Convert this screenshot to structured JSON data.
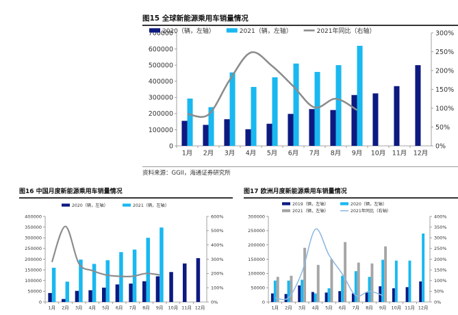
{
  "charts": [
    {
      "title": "图15 全球新能源乘用车销量情况",
      "source": "资料来源：GGII，海通证券研究所",
      "chart_data": {
        "type": "bar",
        "categories": [
          "1月",
          "2月",
          "3月",
          "4月",
          "5月",
          "6月",
          "7月",
          "8月",
          "9月",
          "10月",
          "11月",
          "12月"
        ],
        "series": [
          {
            "name": "2020（辆，左轴）",
            "kind": "bar",
            "axis": "left",
            "color": "#0d1a80",
            "values": [
              155000,
              130000,
              165000,
              103000,
              137000,
              198000,
              228000,
              222000,
              315000,
              325000,
              370000,
              500000
            ]
          },
          {
            "name": "2021（辆，左轴）",
            "kind": "bar",
            "axis": "left",
            "color": "#1ab8f0",
            "values": [
              293000,
              240000,
              455000,
              365000,
              425000,
              510000,
              458000,
              500000,
              620000,
              null,
              null,
              null
            ]
          },
          {
            "name": "2021年同比（右轴）",
            "kind": "line",
            "axis": "right",
            "color": "#8c8c8c",
            "values": [
              0.85,
              0.83,
              1.75,
              2.48,
              2.12,
              1.58,
              1.02,
              1.25,
              0.95,
              null,
              null,
              null
            ]
          }
        ],
        "ylim_left": [
          0,
          700000
        ],
        "yticks_left": [
          "0",
          "100000",
          "200000",
          "300000",
          "400000",
          "500000",
          "600000",
          "700000"
        ],
        "ylim_right": [
          0,
          3
        ],
        "yticks_right": [
          "0%",
          "50%",
          "100%",
          "150%",
          "200%",
          "250%",
          "300%"
        ],
        "legend_position": "top"
      }
    },
    {
      "title": "图16 中国月度新能源乘用车销量情况",
      "chart_data": {
        "type": "bar",
        "categories": [
          "1月",
          "2月",
          "3月",
          "4月",
          "5月",
          "6月",
          "7月",
          "8月",
          "9月",
          "10月",
          "11月",
          "12月"
        ],
        "series": [
          {
            "name": "2020（辆，左轴）",
            "kind": "bar",
            "axis": "left",
            "color": "#0d1a80",
            "values": [
              42000,
              14000,
              52000,
              55000,
              67000,
              82000,
              86000,
              97000,
              120000,
              140000,
              180000,
              205000
            ]
          },
          {
            "name": "2021（辆，左轴）",
            "kind": "bar",
            "axis": "left",
            "color": "#1ab8f0",
            "values": [
              160000,
              95000,
              198000,
              178000,
              195000,
              233000,
              245000,
              300000,
              348000,
              null,
              null,
              null
            ]
          },
          {
            "name": "",
            "kind": "line",
            "axis": "right",
            "color": "#8c8c8c",
            "values": [
              2.8,
              5.3,
              2.7,
              2.2,
              1.9,
              1.8,
              1.8,
              2.0,
              1.9,
              null,
              null,
              null
            ]
          }
        ],
        "ylim_left": [
          0,
          400000
        ],
        "yticks_left": [
          "0",
          "50000",
          "100000",
          "150000",
          "200000",
          "250000",
          "300000",
          "350000",
          "400000"
        ],
        "ylim_right": [
          0,
          6
        ],
        "yticks_right": [
          "0%",
          "100%",
          "200%",
          "300%",
          "400%",
          "500%",
          "600%"
        ],
        "legend_position": "top"
      }
    },
    {
      "title": "图17 欧洲月度新能源乘用车销量情况",
      "chart_data": {
        "type": "bar",
        "categories": [
          "1月",
          "2月",
          "3月",
          "4月",
          "5月",
          "6月",
          "7月",
          "8月",
          "9月",
          "10月",
          "11月",
          "12月"
        ],
        "series": [
          {
            "name": "2019（辆，左轴）",
            "kind": "bar",
            "axis": "left",
            "color": "#0d1a80",
            "values": [
              30000,
              28000,
              58000,
              35000,
              33000,
              38000,
              30000,
              33000,
              55000,
              48000,
              52000,
              72000
            ]
          },
          {
            "name": "2020（辆，左轴）",
            "kind": "bar",
            "axis": "left",
            "color": "#1ab8f0",
            "values": [
              75000,
              75000,
              78000,
              30000,
              48000,
              92000,
              108000,
              88000,
              148000,
              145000,
              145000,
              240000
            ]
          },
          {
            "name": "2021（辆，左轴）",
            "kind": "bar",
            "axis": "left",
            "color": "#a6a6a6",
            "values": [
              88000,
              92000,
              190000,
              130000,
              150000,
              210000,
              138000,
              135000,
              195000,
              null,
              null,
              null
            ]
          },
          {
            "name": "2021年同比（右轴）",
            "kind": "line",
            "axis": "right",
            "color": "#8fb8e0",
            "values": [
              0.2,
              0.2,
              1.4,
              3.4,
              2.2,
              1.3,
              0.3,
              0.5,
              0.3,
              null,
              null,
              null
            ]
          }
        ],
        "ylim_left": [
          0,
          300000
        ],
        "yticks_left": [
          "0",
          "50000",
          "100000",
          "150000",
          "200000",
          "250000",
          "300000"
        ],
        "ylim_right": [
          0,
          4
        ],
        "yticks_right": [
          "0%",
          "50%",
          "100%",
          "150%",
          "200%",
          "250%",
          "300%",
          "350%",
          "400%"
        ],
        "legend_position": "top"
      }
    }
  ]
}
